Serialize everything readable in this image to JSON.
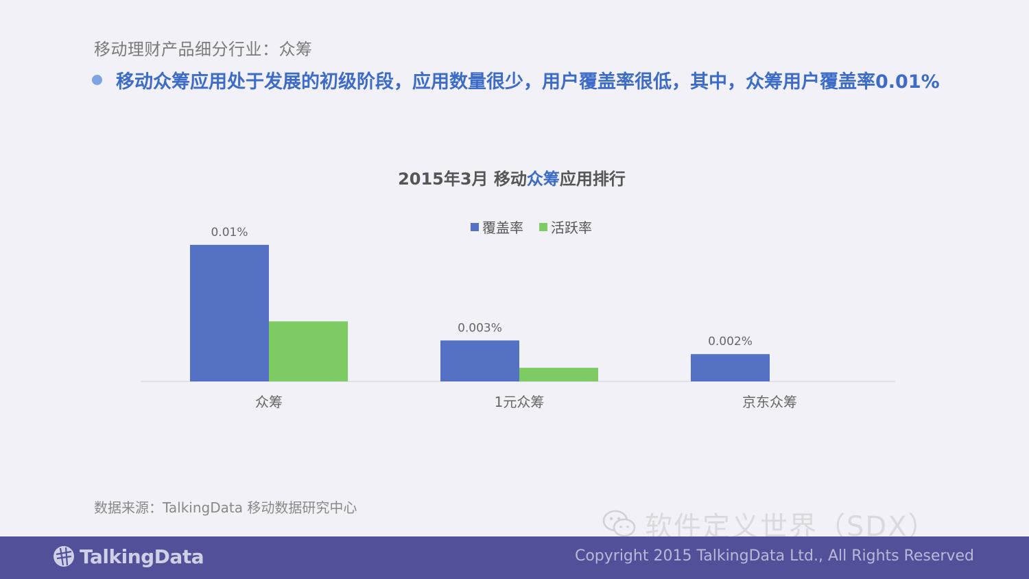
{
  "header": {
    "subtitle": "移动理财产品细分行业：众筹",
    "headline": "移动众筹应用处于发展的初级阶段，应用数量很少，用户覆盖率很低，其中，众筹用户覆盖率0.01%"
  },
  "chart_title": {
    "part1": "2015年3月 移动",
    "highlight": "众筹",
    "part2": "应用排行"
  },
  "chart_data": {
    "type": "bar",
    "title": "2015年3月 移动众筹应用排行",
    "categories": [
      "众筹",
      "1元众筹",
      "京东众筹"
    ],
    "series": [
      {
        "name": "覆盖率",
        "color": "#5571c4",
        "values": [
          0.01,
          0.003,
          0.002
        ]
      },
      {
        "name": "活跃率",
        "color": "#7dcb62",
        "values": [
          0.0044,
          0.001,
          0
        ]
      }
    ],
    "data_labels": [
      "0.01%",
      "0.003%",
      "0.002%"
    ],
    "unit": "%",
    "legend_position": "top-center",
    "grid": false,
    "ylim": [
      0,
      0.0106
    ]
  },
  "source": "数据来源：TalkingData 移动数据研究中心",
  "watermark": "软件定义世界（SDX）",
  "footer": {
    "logo": "TalkingData",
    "copyright": "Copyright 2015 TalkingData Ltd., All Rights Reserved"
  },
  "icons": {
    "bullet": "bullet-dot-icon",
    "watermark": "wechat-icon",
    "logo": "talkingdata-logo-icon"
  }
}
